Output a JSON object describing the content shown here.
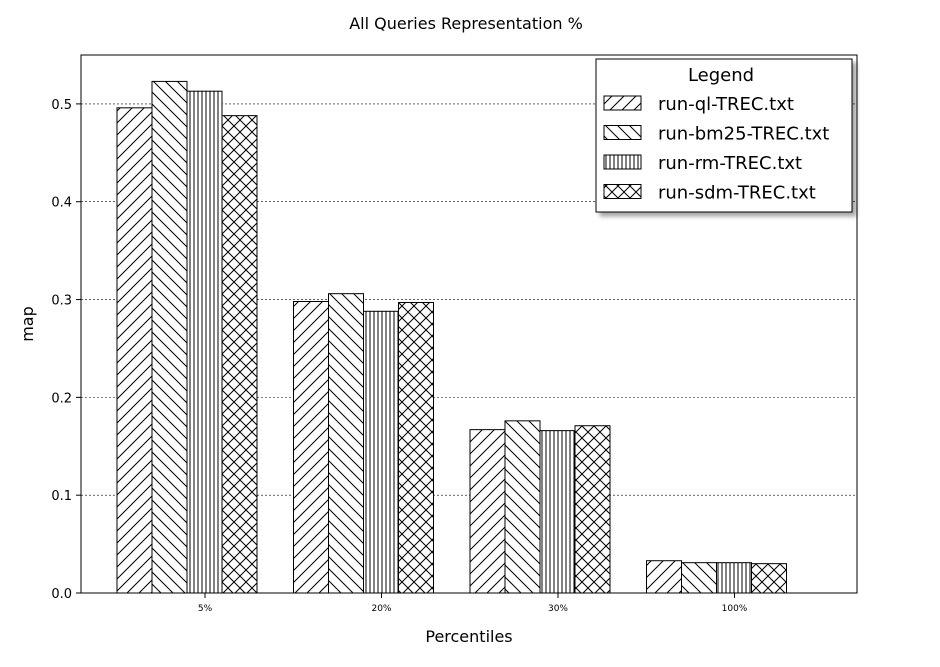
{
  "chart_data": {
    "type": "bar",
    "title": "All Queries Representation %",
    "xlabel": "Percentiles",
    "ylabel": "map",
    "categories": [
      "5%",
      "20%",
      "30%",
      "100%"
    ],
    "ylim": [
      0,
      0.55
    ],
    "yticks": [
      "0.0",
      "0.1",
      "0.2",
      "0.3",
      "0.4",
      "0.5"
    ],
    "grid": "horizontal-dashed",
    "legend": {
      "title": "Legend",
      "placement": "top-right"
    },
    "series": [
      {
        "name": "run-ql-TREC.txt",
        "hatch": "diag-up",
        "values": [
          0.496,
          0.298,
          0.167,
          0.033
        ]
      },
      {
        "name": "run-bm25-TREC.txt",
        "hatch": "diag-down",
        "values": [
          0.523,
          0.306,
          0.176,
          0.031
        ]
      },
      {
        "name": "run-rm-TREC.txt",
        "hatch": "vertical",
        "values": [
          0.513,
          0.288,
          0.166,
          0.031
        ]
      },
      {
        "name": "run-sdm-TREC.txt",
        "hatch": "cross",
        "values": [
          0.488,
          0.297,
          0.171,
          0.03
        ]
      }
    ]
  }
}
